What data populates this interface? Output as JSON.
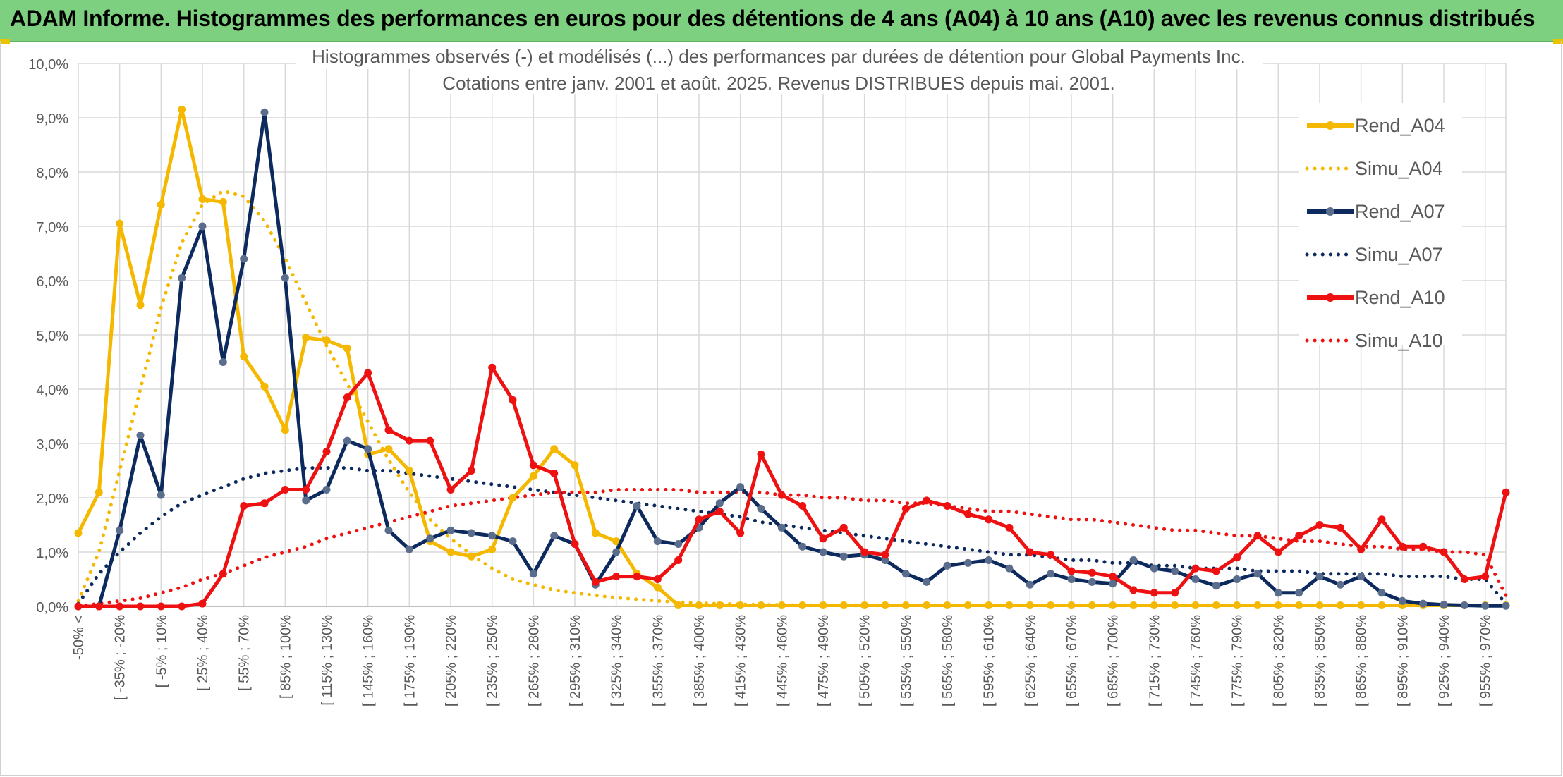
{
  "banner": {
    "title": "ADAM Informe. Histogrammes des performances en euros pour des détentions de 4 ans (A04) à 10 ans (A10) avec les revenus connus distribués"
  },
  "chart_data": {
    "type": "line",
    "title": "Histogrammes observés (-) et modélisés (...) des performances par durées de détention pour Global Payments Inc.",
    "subtitle": "Cotations entre janv. 2001 et août. 2025. Revenus DISTRIBUES depuis mai. 2001.",
    "ylim": [
      0,
      10
    ],
    "y_ticks": [
      "0,0%",
      "1,0%",
      "2,0%",
      "3,0%",
      "4,0%",
      "5,0%",
      "6,0%",
      "7,0%",
      "8,0%",
      "9,0%",
      "10,0%"
    ],
    "x_tick_labels": [
      "-50% <",
      "[ -35% ; -20%",
      "[ -5% ; 10%",
      "[ 25% ; 40%",
      "[ 55% ; 70%",
      "[ 85% ; 100%",
      "[ 115% ; 130%",
      "[ 145% ; 160%",
      "[ 175% ; 190%",
      "[ 205% ; 220%",
      "[ 235% ; 250%",
      "[ 265% ; 280%",
      "[ 295% ; 310%",
      "[ 325% ; 340%",
      "[ 355% ; 370%",
      "[ 385% ; 400%",
      "[ 415% ; 430%",
      "[ 445% ; 460%",
      "[ 475% ; 490%",
      "[ 505% ; 520%",
      "[ 535% ; 550%",
      "[ 565% ; 580%",
      "[ 595% ; 610%",
      "[ 625% ; 640%",
      "[ 655% ; 670%",
      "[ 685% ; 700%",
      "[ 715% ; 730%",
      "[ 745% ; 760%",
      "[ 775% ; 790%",
      "[ 805% ; 820%",
      "[ 835% ; 850%",
      "[ 865% ; 880%",
      "[ 895% ; 910%",
      "[ 925% ; 940%",
      "[ 955% ; 970%"
    ],
    "grid": true,
    "legend_position": "right",
    "series": [
      {
        "name": "Rend_A04",
        "style": "solid",
        "color": "#f5b800",
        "values": [
          1.35,
          2.1,
          7.05,
          5.55,
          7.4,
          9.15,
          7.5,
          7.45,
          4.6,
          4.05,
          3.25,
          4.95,
          4.9,
          4.75,
          2.8,
          2.9,
          2.5,
          1.2,
          1.0,
          0.92,
          1.05,
          2.0,
          2.4,
          2.9,
          2.6,
          1.35,
          1.2,
          0.6,
          0.35,
          0.02,
          0.02,
          0.02,
          0.02,
          0.02,
          0.02,
          0.02,
          0.02,
          0.02,
          0.02,
          0.02,
          0.02,
          0.02,
          0.02,
          0.02,
          0.02,
          0.02,
          0.02,
          0.02,
          0.02,
          0.02,
          0.02,
          0.02,
          0.02,
          0.02,
          0.02,
          0.02,
          0.02,
          0.02,
          0.02,
          0.02,
          0.02,
          0.02,
          0.02,
          0.02,
          0.02,
          0.02,
          0.02,
          0.02,
          0.02,
          0.02
        ]
      },
      {
        "name": "Simu_A04",
        "style": "dotted",
        "color": "#f5b800",
        "values": [
          0.1,
          1.0,
          2.5,
          4.0,
          5.5,
          6.7,
          7.4,
          7.65,
          7.55,
          7.1,
          6.4,
          5.6,
          4.8,
          4.1,
          3.4,
          2.7,
          2.1,
          1.6,
          1.25,
          0.95,
          0.7,
          0.5,
          0.4,
          0.3,
          0.25,
          0.2,
          0.16,
          0.13,
          0.1,
          0.08,
          0.06,
          0.05,
          0.04,
          0.03,
          0.03,
          0.02,
          0.02,
          0.02,
          0.02,
          0.02,
          0.02,
          0.02,
          0.02,
          0.02,
          0.02,
          0.02,
          0.02,
          0.02,
          0.02,
          0.02,
          0.02,
          0.02,
          0.02,
          0.02,
          0.02,
          0.02,
          0.02,
          0.02,
          0.02,
          0.02,
          0.02,
          0.02,
          0.02,
          0.02,
          0.02,
          0.02,
          0.02,
          0.02,
          0.02,
          0.02
        ]
      },
      {
        "name": "Rend_A07",
        "style": "solid",
        "color": "#0d2a5e",
        "values": [
          0.0,
          0.0,
          1.4,
          3.15,
          2.05,
          6.05,
          7.0,
          4.5,
          6.4,
          9.1,
          6.05,
          1.95,
          2.15,
          3.05,
          2.9,
          1.4,
          1.05,
          1.25,
          1.4,
          1.35,
          1.3,
          1.2,
          0.6,
          1.3,
          1.15,
          0.4,
          1.0,
          1.85,
          1.2,
          1.15,
          1.45,
          1.9,
          2.2,
          1.8,
          1.45,
          1.1,
          1.0,
          0.92,
          0.95,
          0.85,
          0.6,
          0.45,
          0.75,
          0.8,
          0.85,
          0.7,
          0.4,
          0.6,
          0.5,
          0.45,
          0.42,
          0.85,
          0.7,
          0.65,
          0.5,
          0.38,
          0.5,
          0.6,
          0.25,
          0.25,
          0.55,
          0.4,
          0.55,
          0.25,
          0.1,
          0.05,
          0.03,
          0.02,
          0.01,
          0.01
        ]
      },
      {
        "name": "Simu_A07",
        "style": "dotted",
        "color": "#0d2a5e",
        "values": [
          0.05,
          0.6,
          1.0,
          1.35,
          1.65,
          1.9,
          2.05,
          2.2,
          2.35,
          2.45,
          2.5,
          2.55,
          2.55,
          2.55,
          2.5,
          2.5,
          2.45,
          2.4,
          2.35,
          2.3,
          2.25,
          2.2,
          2.15,
          2.1,
          2.05,
          2.0,
          1.95,
          1.9,
          1.85,
          1.8,
          1.75,
          1.7,
          1.65,
          1.55,
          1.5,
          1.45,
          1.4,
          1.35,
          1.3,
          1.25,
          1.2,
          1.15,
          1.1,
          1.05,
          1.0,
          0.95,
          0.95,
          0.9,
          0.85,
          0.85,
          0.8,
          0.8,
          0.75,
          0.75,
          0.7,
          0.7,
          0.7,
          0.65,
          0.65,
          0.65,
          0.6,
          0.6,
          0.6,
          0.6,
          0.55,
          0.55,
          0.55,
          0.5,
          0.5,
          0.05
        ]
      },
      {
        "name": "Rend_A10",
        "style": "solid",
        "color": "#ee1111",
        "values": [
          0.0,
          0.0,
          0.0,
          0.0,
          0.0,
          0.0,
          0.05,
          0.6,
          1.85,
          1.9,
          2.15,
          2.15,
          2.85,
          3.85,
          4.3,
          3.25,
          3.05,
          3.05,
          2.15,
          2.5,
          4.4,
          3.8,
          2.6,
          2.45,
          1.15,
          0.45,
          0.55,
          0.55,
          0.5,
          0.85,
          1.6,
          1.75,
          1.35,
          2.8,
          2.05,
          1.85,
          1.25,
          1.45,
          1.0,
          0.95,
          1.8,
          1.95,
          1.85,
          1.7,
          1.6,
          1.45,
          1.0,
          0.95,
          0.65,
          0.62,
          0.55,
          0.3,
          0.25,
          0.25,
          0.7,
          0.65,
          0.9,
          1.3,
          1.0,
          1.3,
          1.5,
          1.45,
          1.05,
          1.6,
          1.1,
          1.1,
          1.0,
          0.5,
          0.55,
          2.1
        ]
      },
      {
        "name": "Simu_A10",
        "style": "dotted",
        "color": "#ee1111",
        "values": [
          0.0,
          0.05,
          0.1,
          0.15,
          0.25,
          0.35,
          0.5,
          0.6,
          0.75,
          0.9,
          1.0,
          1.1,
          1.25,
          1.35,
          1.45,
          1.55,
          1.65,
          1.75,
          1.85,
          1.9,
          1.95,
          2.0,
          2.05,
          2.1,
          2.1,
          2.1,
          2.15,
          2.15,
          2.15,
          2.15,
          2.1,
          2.1,
          2.1,
          2.1,
          2.05,
          2.05,
          2.0,
          2.0,
          1.95,
          1.95,
          1.9,
          1.9,
          1.85,
          1.8,
          1.75,
          1.75,
          1.7,
          1.65,
          1.6,
          1.6,
          1.55,
          1.5,
          1.45,
          1.4,
          1.4,
          1.35,
          1.3,
          1.3,
          1.25,
          1.2,
          1.2,
          1.15,
          1.1,
          1.1,
          1.05,
          1.05,
          1.0,
          1.0,
          0.95,
          0.2
        ]
      }
    ]
  }
}
